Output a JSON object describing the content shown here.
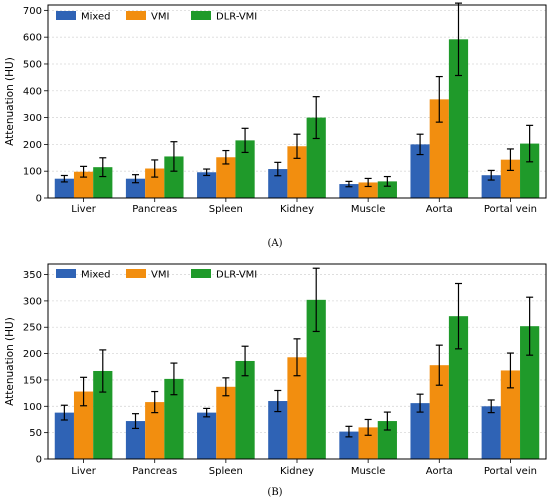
{
  "colors": {
    "mixed": "#2f63b5",
    "vmi": "#f28e0f",
    "dlr": "#1f9a2a",
    "grid": "#d9d9d9",
    "axis": "#000000"
  },
  "chart_data": [
    {
      "type": "bar",
      "panel_label": "(A)",
      "ylabel": "Attenuation (HU)",
      "xlabel": "",
      "ylim": [
        0,
        720
      ],
      "yticks": [
        0,
        100,
        200,
        300,
        400,
        500,
        600,
        700
      ],
      "grid": true,
      "legend_position": "top-left",
      "categories": [
        "Liver",
        "Pancreas",
        "Spleen",
        "Kidney",
        "Muscle",
        "Aorta",
        "Portal vein"
      ],
      "series": [
        {
          "name": "Mixed",
          "values": [
            72,
            72,
            96,
            108,
            52,
            200,
            85
          ],
          "errors": [
            12,
            15,
            12,
            25,
            10,
            38,
            18
          ]
        },
        {
          "name": "VMI",
          "values": [
            98,
            110,
            152,
            193,
            58,
            368,
            143
          ],
          "errors": [
            20,
            32,
            25,
            45,
            15,
            85,
            40
          ]
        },
        {
          "name": "DLR-VMI",
          "values": [
            115,
            155,
            215,
            300,
            62,
            592,
            203
          ],
          "errors": [
            35,
            55,
            45,
            78,
            18,
            135,
            68
          ]
        }
      ]
    },
    {
      "type": "bar",
      "panel_label": "(B)",
      "ylabel": "Attenuation (HU)",
      "xlabel": "",
      "ylim": [
        0,
        370
      ],
      "yticks": [
        0,
        50,
        100,
        150,
        200,
        250,
        300,
        350
      ],
      "grid": true,
      "legend_position": "top-left",
      "categories": [
        "Liver",
        "Pancreas",
        "Spleen",
        "Kidney",
        "Muscle",
        "Aorta",
        "Portal vein"
      ],
      "series": [
        {
          "name": "Mixed",
          "values": [
            88,
            72,
            88,
            110,
            52,
            106,
            100
          ],
          "errors": [
            14,
            14,
            8,
            20,
            10,
            17,
            12
          ]
        },
        {
          "name": "VMI",
          "values": [
            128,
            108,
            137,
            193,
            60,
            178,
            168
          ],
          "errors": [
            27,
            20,
            17,
            35,
            15,
            38,
            33
          ]
        },
        {
          "name": "DLR-VMI",
          "values": [
            167,
            152,
            186,
            302,
            72,
            271,
            252
          ],
          "errors": [
            40,
            30,
            28,
            60,
            17,
            62,
            55
          ]
        }
      ]
    }
  ]
}
